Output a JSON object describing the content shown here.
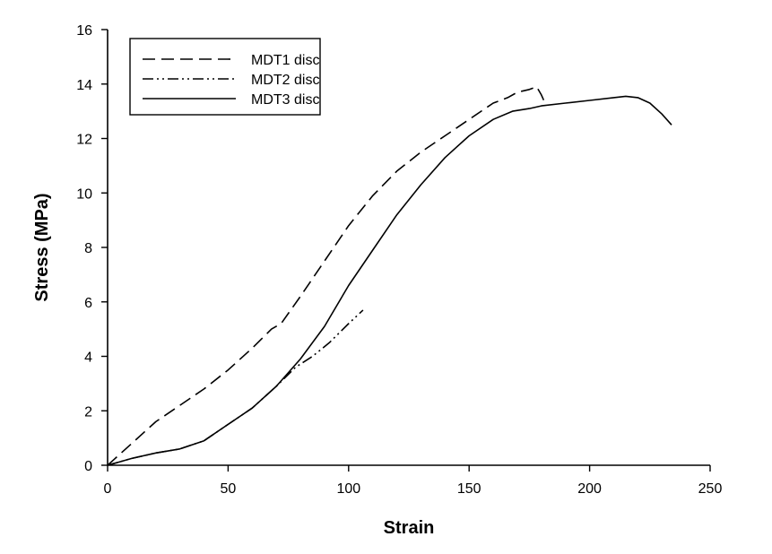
{
  "chart_data": {
    "type": "line",
    "title": "",
    "xlabel": "Strain",
    "ylabel": "Stress (MPa)",
    "xlim": [
      0,
      250
    ],
    "ylim": [
      0,
      16
    ],
    "xticks": [
      0,
      50,
      100,
      150,
      200,
      250
    ],
    "yticks": [
      0,
      2,
      4,
      6,
      8,
      10,
      12,
      14,
      16
    ],
    "grid": false,
    "legend_position": "top-left",
    "series": [
      {
        "name": "MDT1 disc",
        "style": "dashed",
        "color": "#000000",
        "x": [
          0,
          10,
          20,
          30,
          40,
          50,
          60,
          68,
          72,
          80,
          90,
          100,
          110,
          120,
          130,
          140,
          150,
          160,
          166,
          170,
          175,
          178,
          180,
          182
        ],
        "y": [
          0,
          0.8,
          1.6,
          2.2,
          2.8,
          3.5,
          4.3,
          5.0,
          5.2,
          6.2,
          7.5,
          8.8,
          9.9,
          10.8,
          11.5,
          12.1,
          12.7,
          13.3,
          13.5,
          13.7,
          13.8,
          13.9,
          13.6,
          13.2
        ]
      },
      {
        "name": "MDT2 disc",
        "style": "dash-dot-dot",
        "color": "#000000",
        "x": [
          0,
          10,
          20,
          30,
          40,
          50,
          60,
          70,
          78,
          85,
          92,
          100,
          106
        ],
        "y": [
          0,
          0.25,
          0.45,
          0.6,
          0.9,
          1.5,
          2.1,
          2.9,
          3.6,
          4.0,
          4.5,
          5.2,
          5.7
        ]
      },
      {
        "name": "MDT3 disc",
        "style": "solid",
        "color": "#000000",
        "x": [
          0,
          10,
          20,
          30,
          40,
          50,
          60,
          70,
          80,
          90,
          100,
          110,
          120,
          130,
          140,
          150,
          160,
          168,
          175,
          180,
          190,
          200,
          210,
          215,
          220,
          225,
          230,
          234
        ],
        "y": [
          0,
          0.25,
          0.45,
          0.6,
          0.9,
          1.5,
          2.1,
          2.9,
          3.9,
          5.1,
          6.6,
          7.9,
          9.2,
          10.3,
          11.3,
          12.1,
          12.7,
          13.0,
          13.1,
          13.2,
          13.3,
          13.4,
          13.5,
          13.55,
          13.5,
          13.3,
          12.9,
          12.5
        ]
      }
    ]
  }
}
